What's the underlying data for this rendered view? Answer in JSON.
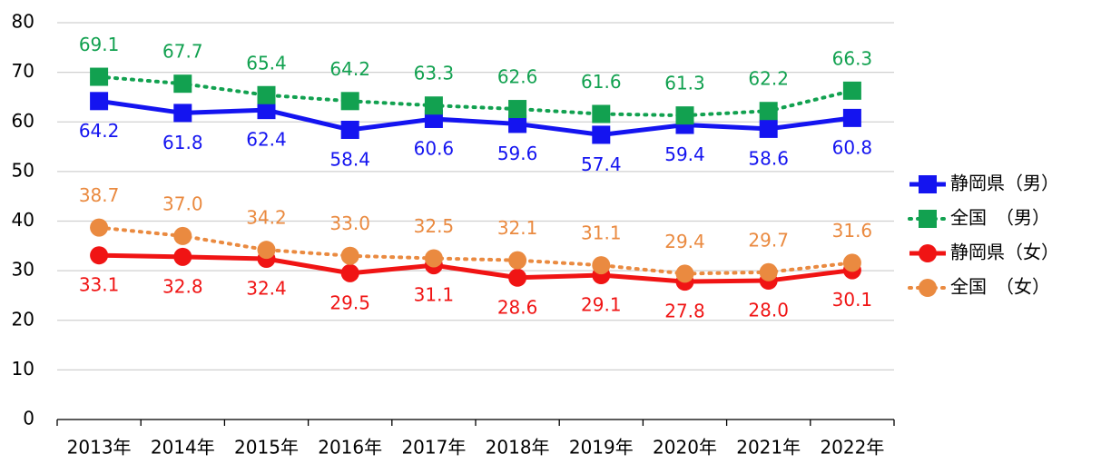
{
  "chart_data": {
    "type": "line",
    "categories": [
      "2013年",
      "2014年",
      "2015年",
      "2016年",
      "2017年",
      "2018年",
      "2019年",
      "2020年",
      "2021年",
      "2022年"
    ],
    "series": [
      {
        "name": "静岡県（男）",
        "color": "#1414f0",
        "marker": "square",
        "dash": "solid",
        "label_side": "below",
        "values": [
          64.2,
          61.8,
          62.4,
          58.4,
          60.6,
          59.6,
          57.4,
          59.4,
          58.6,
          60.8
        ],
        "value_labels": [
          "64.2",
          "61.8",
          "62.4",
          "58.4",
          "60.6",
          "59.6",
          "57.4",
          "59.4",
          "58.6",
          "60.8"
        ]
      },
      {
        "name": "全国　（男）",
        "color": "#12a150",
        "marker": "square",
        "dash": "dotted",
        "label_side": "above",
        "values": [
          69.1,
          67.7,
          65.4,
          64.2,
          63.3,
          62.6,
          61.6,
          61.3,
          62.2,
          66.3
        ],
        "value_labels": [
          "69.1",
          "67.7",
          "65.4",
          "64.2",
          "63.3",
          "62.6",
          "61.6",
          "61.3",
          "62.2",
          "66.3"
        ]
      },
      {
        "name": "静岡県（女）",
        "color": "#f01414",
        "marker": "circle",
        "dash": "solid",
        "label_side": "below",
        "values": [
          33.1,
          32.8,
          32.4,
          29.5,
          31.1,
          28.6,
          29.1,
          27.8,
          28.0,
          30.1
        ],
        "value_labels": [
          "33.1",
          "32.8",
          "32.4",
          "29.5",
          "31.1",
          "28.6",
          "29.1",
          "27.8",
          "28.0",
          "30.1"
        ]
      },
      {
        "name": "全国　（女）",
        "color": "#ea8a40",
        "marker": "circle",
        "dash": "dotted",
        "label_side": "above",
        "values": [
          38.7,
          37.0,
          34.2,
          33.0,
          32.5,
          32.1,
          31.1,
          29.4,
          29.7,
          31.6
        ],
        "value_labels": [
          "38.7",
          "37.0",
          "34.2",
          "33.0",
          "32.5",
          "32.1",
          "31.1",
          "29.4",
          "29.7",
          "31.6"
        ]
      }
    ],
    "ylim": [
      0,
      80
    ],
    "yticks": [
      0,
      10,
      20,
      30,
      40,
      50,
      60,
      70,
      80
    ],
    "grid": true,
    "legend": "right"
  }
}
